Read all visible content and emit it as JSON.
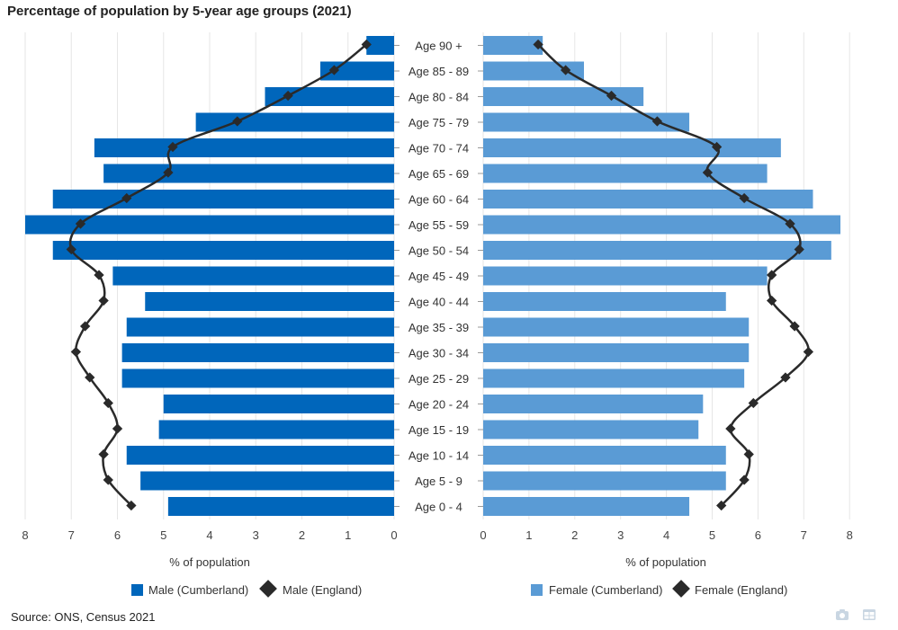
{
  "title": "Percentage of population by 5-year age groups (2021)",
  "source": "Source: ONS, Census 2021",
  "chart_data": {
    "type": "bar",
    "orientation": "horizontal-population-pyramid",
    "categories": [
      "Age 90 +",
      "Age 85 - 89",
      "Age 80 - 84",
      "Age 75 - 79",
      "Age 70 - 74",
      "Age 65 - 69",
      "Age 60 - 64",
      "Age 55 - 59",
      "Age 50 - 54",
      "Age 45 - 49",
      "Age 40 - 44",
      "Age 35 - 39",
      "Age 30 - 34",
      "Age 25 - 29",
      "Age 20 - 24",
      "Age 15 - 19",
      "Age 10 - 14",
      "Age 5 - 9",
      "Age 0 - 4"
    ],
    "left_panel": {
      "xlabel": "% of population",
      "xlim": [
        0,
        8
      ],
      "ticks": [
        "8",
        "7",
        "6",
        "5",
        "4",
        "3",
        "2",
        "1",
        "0"
      ],
      "series": [
        {
          "name": "Male (Cumberland)",
          "kind": "bar",
          "color": "#0066bb",
          "values": [
            0.6,
            1.6,
            2.8,
            4.3,
            6.5,
            6.3,
            7.4,
            8.0,
            7.4,
            6.1,
            5.4,
            5.8,
            5.9,
            5.9,
            5.0,
            5.1,
            5.8,
            5.5,
            4.9
          ]
        },
        {
          "name": "Male (England)",
          "kind": "line",
          "color": "#2a2a2a",
          "values": [
            0.6,
            1.3,
            2.3,
            3.4,
            4.8,
            4.9,
            5.8,
            6.8,
            7.0,
            6.4,
            6.3,
            6.7,
            6.9,
            6.6,
            6.2,
            6.0,
            6.3,
            6.2,
            5.7
          ]
        }
      ]
    },
    "right_panel": {
      "xlabel": "% of population",
      "xlim": [
        0,
        8
      ],
      "ticks": [
        "0",
        "1",
        "2",
        "3",
        "4",
        "5",
        "6",
        "7",
        "8"
      ],
      "series": [
        {
          "name": "Female (Cumberland)",
          "kind": "bar",
          "color": "#5a9bd5",
          "values": [
            1.3,
            2.2,
            3.5,
            4.5,
            6.5,
            6.2,
            7.2,
            7.8,
            7.6,
            6.2,
            5.3,
            5.8,
            5.8,
            5.7,
            4.8,
            4.7,
            5.3,
            5.3,
            4.5
          ]
        },
        {
          "name": "Female (England)",
          "kind": "line",
          "color": "#2a2a2a",
          "values": [
            1.2,
            1.8,
            2.8,
            3.8,
            5.1,
            4.9,
            5.7,
            6.7,
            6.9,
            6.3,
            6.3,
            6.8,
            7.1,
            6.6,
            5.9,
            5.4,
            5.8,
            5.7,
            5.2
          ]
        }
      ]
    }
  }
}
